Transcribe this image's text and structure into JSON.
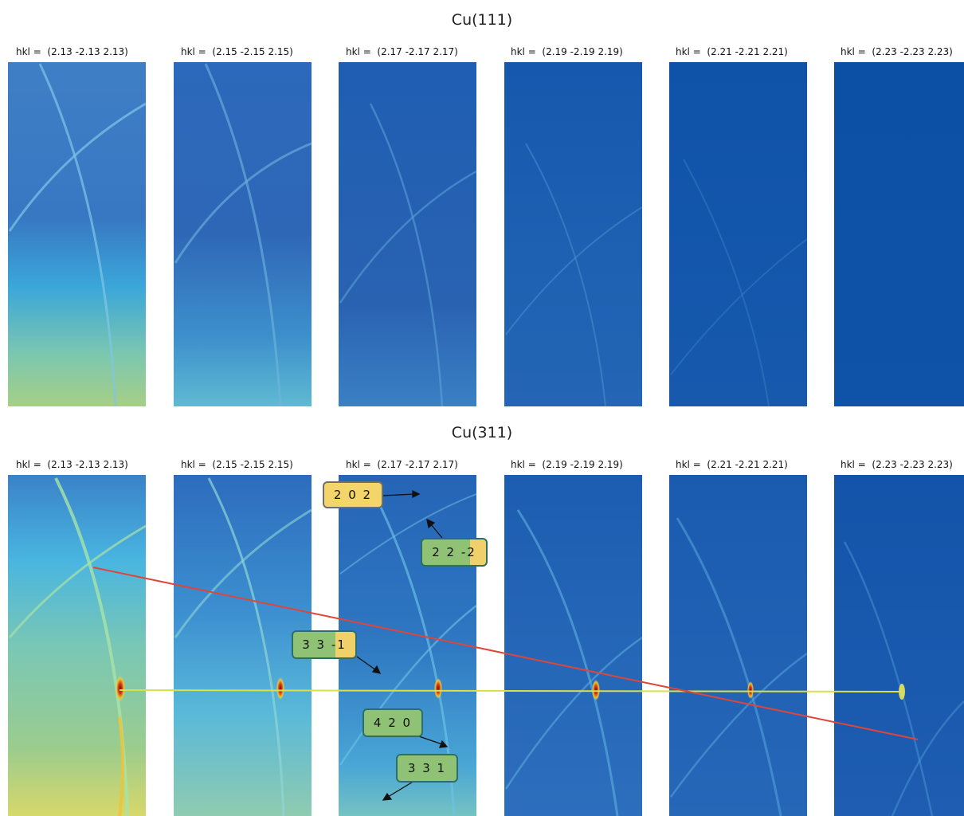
{
  "figure": {
    "sections": [
      {
        "title": "Cu(111)",
        "panels": [
          {
            "label": "hkl =  (2.13 -2.13 2.13)"
          },
          {
            "label": "hkl =  (2.15 -2.15 2.15)"
          },
          {
            "label": "hkl =  (2.17 -2.17 2.17)"
          },
          {
            "label": "hkl =  (2.19 -2.19 2.19)"
          },
          {
            "label": "hkl =  (2.21 -2.21 2.21)"
          },
          {
            "label": "hkl =  (2.23 -2.23 2.23)"
          }
        ]
      },
      {
        "title": "Cu(311)",
        "panels": [
          {
            "label": "hkl =  (2.13 -2.13 2.13)"
          },
          {
            "label": "hkl =  (2.15 -2.15 2.15)"
          },
          {
            "label": "hkl =  (2.17 -2.17 2.17)"
          },
          {
            "label": "hkl =  (2.19 -2.19 2.19)"
          },
          {
            "label": "hkl =  (2.21 -2.21 2.21)"
          },
          {
            "label": "hkl =  (2.23 -2.23 2.23)"
          }
        ]
      }
    ],
    "annotations": [
      {
        "text": "2 0 2"
      },
      {
        "text": "2 2 -2"
      },
      {
        "text": "3 3 -1"
      },
      {
        "text": "4 2 0"
      },
      {
        "text": "3 3 1"
      }
    ]
  }
}
